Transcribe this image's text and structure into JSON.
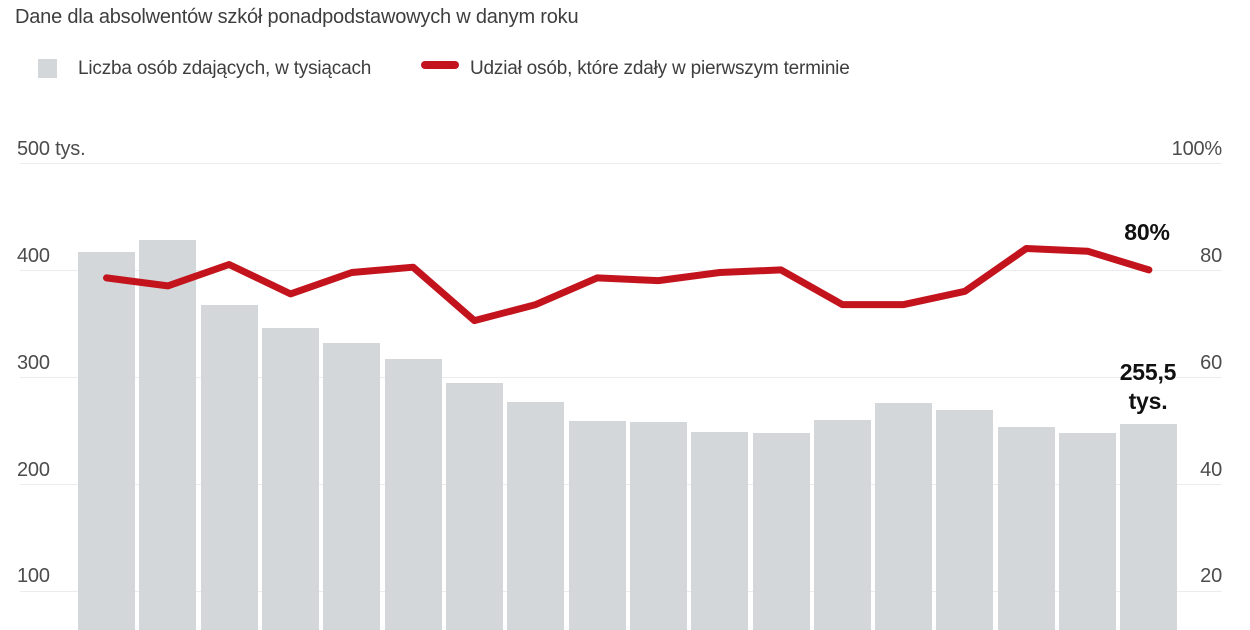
{
  "header": {
    "title": "Dane dla absolwentów szkół ponadpodstawowych w danym roku"
  },
  "legend": {
    "bars": {
      "label": "Liczba osób zdających, w tysiącach"
    },
    "line": {
      "label": "Udział osób, które zdały w pierwszym terminie"
    }
  },
  "axes": {
    "left": {
      "top_label": "500 tys.",
      "ticks": [
        "400",
        "300",
        "200",
        "100"
      ]
    },
    "right": {
      "top_label": "100%",
      "ticks": [
        "80",
        "60",
        "40",
        "20"
      ]
    }
  },
  "annotations": {
    "line_end_label": "80%",
    "bar_end_label_line1": "255,5",
    "bar_end_label_line2": "tys."
  },
  "colors": {
    "bar": "#d4d7da",
    "line": "#c3141e",
    "grid": "#ececec",
    "text": "#3e3e3e",
    "tick_text": "#4c4c4c",
    "annotation_text": "#111111"
  },
  "chart_data": {
    "type": "bar+line",
    "title": "Dane dla absolwentów szkół ponadpodstawowych w danym roku",
    "x_points": 18,
    "x_labels_visible": false,
    "left_axis": {
      "unit": "tys.",
      "range": [
        0,
        500
      ],
      "ticks": [
        100,
        200,
        300,
        400,
        500
      ],
      "top_tick_label": "500 tys."
    },
    "right_axis": {
      "unit": "%",
      "range": [
        0,
        100
      ],
      "ticks": [
        20,
        40,
        60,
        80,
        100
      ],
      "top_tick_label": "100%"
    },
    "grid": "horizontal",
    "legend_position": "top",
    "bottom_cropped": true,
    "series": [
      {
        "name": "Liczba osób zdających, w tysiącach",
        "type": "bar",
        "axis": "left",
        "unit": "tys.",
        "values": [
          417,
          428,
          367,
          346,
          332,
          317,
          294,
          276,
          259,
          258,
          248,
          247,
          260,
          275,
          269,
          253,
          247,
          255.5
        ]
      },
      {
        "name": "Udział osób, które zdały w pierwszym terminie",
        "type": "line",
        "axis": "right",
        "unit": "%",
        "values": [
          78.5,
          77,
          81,
          75.5,
          79.5,
          80.5,
          70.5,
          73.5,
          78.5,
          78,
          79.5,
          80,
          73.5,
          73.5,
          76,
          84,
          83.5,
          80
        ]
      }
    ],
    "annotations": [
      {
        "target": "last_line_point",
        "text": "80%"
      },
      {
        "target": "last_bar",
        "text": "255,5 tys."
      }
    ]
  }
}
